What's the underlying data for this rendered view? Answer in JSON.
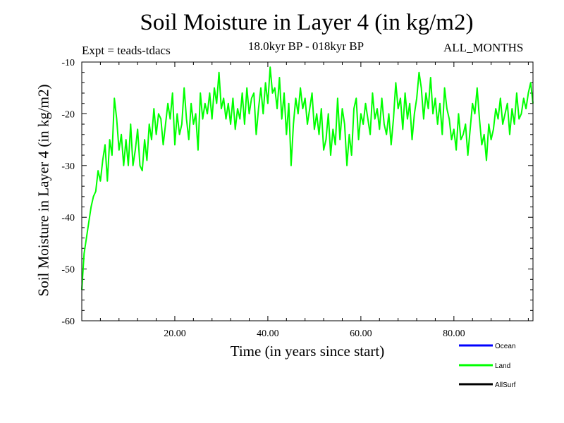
{
  "chart_data": {
    "type": "line",
    "title": "Soil Moisture in Layer 4 (in kg/m2)",
    "subtitle_left": "Expt = teads-tdacs",
    "subtitle_center": "18.0kyr BP - 018kyr BP",
    "subtitle_right": "ALL_MONTHS",
    "xlabel": "Time (in years since start)",
    "ylabel": "Soil Moisture in Layer 4 (in kg/m2)",
    "xlim": [
      0,
      97
    ],
    "ylim": [
      -60,
      -10
    ],
    "xticks": [
      20,
      40,
      60,
      80
    ],
    "xtick_labels": [
      "20.00",
      "40.00",
      "60.00",
      "80.00"
    ],
    "yticks": [
      -60,
      -50,
      -40,
      -30,
      -20,
      -10
    ],
    "ytick_labels": [
      "-60",
      "-50",
      "-40",
      "-30",
      "-20",
      "-10"
    ],
    "legend_position": "bottom-right, below plot",
    "series": [
      {
        "name": "Ocean",
        "color": "#0000ff",
        "x": [],
        "y": []
      },
      {
        "name": "Land",
        "color": "#00ff00",
        "x": [
          0,
          0.5,
          1,
          1.5,
          2,
          2.5,
          3,
          3.5,
          4,
          4.5,
          5,
          5.5,
          6,
          6.5,
          7,
          7.5,
          8,
          8.5,
          9,
          9.5,
          10,
          10.5,
          11,
          11.5,
          12,
          12.5,
          13,
          13.5,
          14,
          14.5,
          15,
          15.5,
          16,
          16.5,
          17,
          17.5,
          18,
          18.5,
          19,
          19.5,
          20,
          20.5,
          21,
          21.5,
          22,
          22.5,
          23,
          23.5,
          24,
          24.5,
          25,
          25.5,
          26,
          26.5,
          27,
          27.5,
          28,
          28.5,
          29,
          29.5,
          30,
          30.5,
          31,
          31.5,
          32,
          32.5,
          33,
          33.5,
          34,
          34.5,
          35,
          35.5,
          36,
          36.5,
          37,
          37.5,
          38,
          38.5,
          39,
          39.5,
          40,
          40.5,
          41,
          41.5,
          42,
          42.5,
          43,
          43.5,
          44,
          44.5,
          45,
          45.5,
          46,
          46.5,
          47,
          47.5,
          48,
          48.5,
          49,
          49.5,
          50,
          50.5,
          51,
          51.5,
          52,
          52.5,
          53,
          53.5,
          54,
          54.5,
          55,
          55.5,
          56,
          56.5,
          57,
          57.5,
          58,
          58.5,
          59,
          59.5,
          60,
          60.5,
          61,
          61.5,
          62,
          62.5,
          63,
          63.5,
          64,
          64.5,
          65,
          65.5,
          66,
          66.5,
          67,
          67.5,
          68,
          68.5,
          69,
          69.5,
          70,
          70.5,
          71,
          71.5,
          72,
          72.5,
          73,
          73.5,
          74,
          74.5,
          75,
          75.5,
          76,
          76.5,
          77,
          77.5,
          78,
          78.5,
          79,
          79.5,
          80,
          80.5,
          81,
          81.5,
          82,
          82.5,
          83,
          83.5,
          84,
          84.5,
          85,
          85.5,
          86,
          86.5,
          87,
          87.5,
          88,
          88.5,
          89,
          89.5,
          90,
          90.5,
          91,
          91.5,
          92,
          92.5,
          93,
          93.5,
          94,
          94.5,
          95,
          95.5,
          96,
          96.5,
          97
        ],
        "y": [
          -54,
          -47,
          -44,
          -41,
          -38,
          -36,
          -35,
          -31,
          -33,
          -29,
          -26,
          -33,
          -25,
          -28,
          -17,
          -21,
          -27,
          -24,
          -30,
          -25,
          -30,
          -22,
          -30,
          -27,
          -23,
          -30,
          -31,
          -25,
          -29,
          -22,
          -25,
          -19,
          -24,
          -20,
          -21,
          -26,
          -22,
          -18,
          -21,
          -16,
          -26,
          -20,
          -24,
          -22,
          -15,
          -21,
          -25,
          -18,
          -22,
          -20,
          -27,
          -16,
          -21,
          -18,
          -20,
          -16,
          -21,
          -15,
          -18,
          -12,
          -19,
          -17,
          -21,
          -18,
          -22,
          -17,
          -23,
          -19,
          -21,
          -16,
          -22,
          -15,
          -20,
          -17,
          -16,
          -24,
          -19,
          -15,
          -20,
          -14,
          -18,
          -11,
          -16,
          -15,
          -19,
          -13,
          -21,
          -16,
          -24,
          -18,
          -30,
          -22,
          -17,
          -20,
          -15,
          -19,
          -17,
          -22,
          -19,
          -16,
          -23,
          -20,
          -24,
          -19,
          -27,
          -25,
          -20,
          -28,
          -23,
          -26,
          -17,
          -25,
          -19,
          -22,
          -30,
          -24,
          -28,
          -19,
          -17,
          -25,
          -20,
          -22,
          -18,
          -21,
          -24,
          -16,
          -21,
          -19,
          -23,
          -17,
          -22,
          -24,
          -20,
          -26,
          -21,
          -14,
          -19,
          -17,
          -23,
          -16,
          -21,
          -18,
          -25,
          -20,
          -17,
          -12,
          -15,
          -21,
          -16,
          -19,
          -13,
          -20,
          -17,
          -22,
          -18,
          -24,
          -15,
          -19,
          -21,
          -25,
          -23,
          -27,
          -20,
          -25,
          -24,
          -22,
          -28,
          -23,
          -18,
          -20,
          -15,
          -21,
          -26,
          -24,
          -29,
          -22,
          -25,
          -23,
          -19,
          -21,
          -17,
          -22,
          -20,
          -18,
          -24,
          -19,
          -22,
          -16,
          -21,
          -20,
          -17,
          -19,
          -16,
          -14,
          -18
        ]
      },
      {
        "name": "AllSurf",
        "color": "#000000",
        "x": [],
        "y": []
      }
    ]
  }
}
